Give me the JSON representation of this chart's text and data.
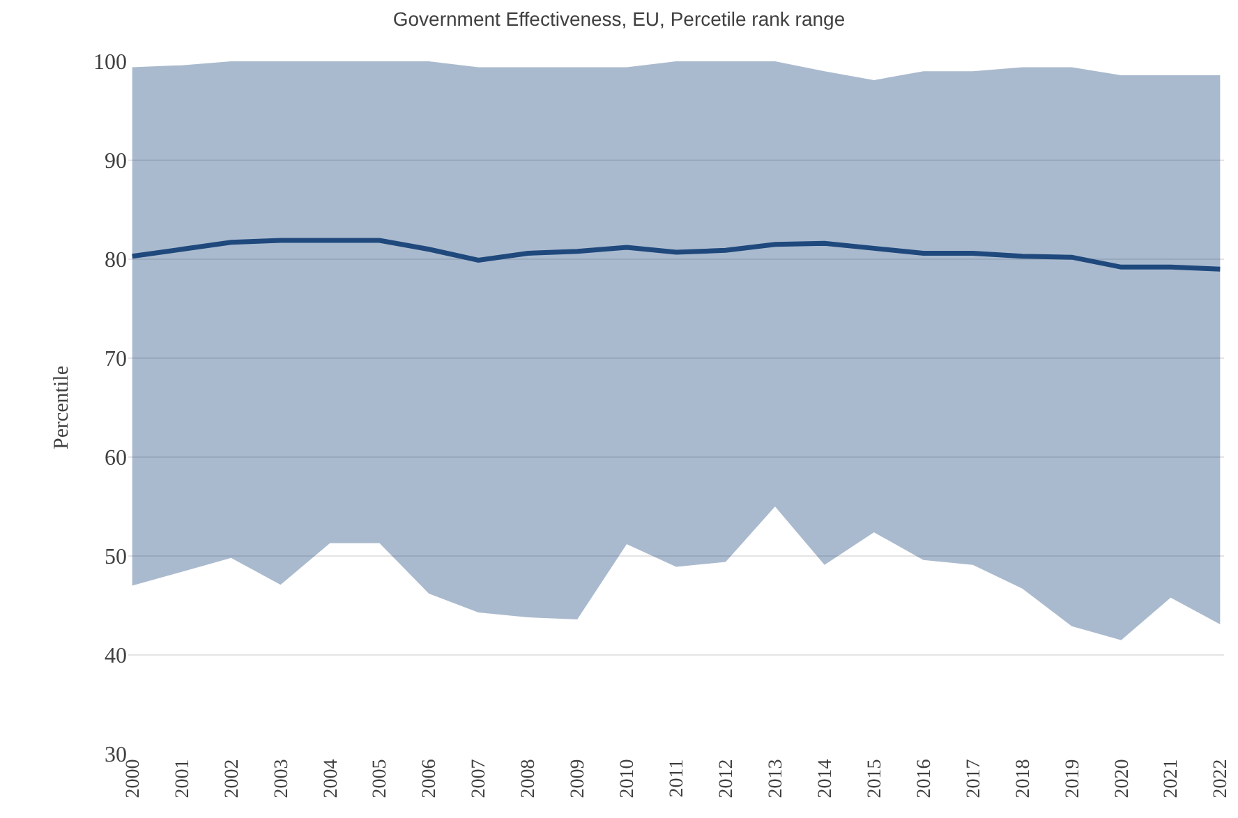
{
  "chart_data": {
    "type": "line",
    "title": "Government Effectiveness, EU, Percetile rank range",
    "ylabel": "Percentile",
    "categories": [
      "2000",
      "2001",
      "2002",
      "2003",
      "2004",
      "2005",
      "2006",
      "2007",
      "2008",
      "2009",
      "2010",
      "2011",
      "2012",
      "2013",
      "2014",
      "2015",
      "2016",
      "2017",
      "2018",
      "2019",
      "2020",
      "2021",
      "2022"
    ],
    "series": [
      {
        "color": "#1f497d",
        "values": [
          80.3,
          81.0,
          81.7,
          81.9,
          81.9,
          81.9,
          81.0,
          79.9,
          80.6,
          80.8,
          81.2,
          80.7,
          80.9,
          81.5,
          81.6,
          81.1,
          80.6,
          80.6,
          80.3,
          80.2,
          79.2,
          79.2,
          79.0
        ],
        "lower": [
          47.0,
          48.4,
          49.8,
          47.1,
          51.3,
          51.3,
          46.2,
          44.3,
          43.8,
          43.6,
          51.2,
          48.9,
          49.4,
          55.0,
          49.1,
          52.4,
          49.6,
          49.1,
          46.7,
          42.9,
          41.5,
          45.8,
          43.1
        ],
        "upper": [
          99.4,
          99.6,
          100,
          100,
          100,
          100,
          100,
          99.4,
          99.4,
          99.4,
          99.4,
          100,
          100,
          100,
          99.0,
          98.1,
          99.0,
          99.0,
          99.4,
          99.4,
          98.6,
          98.6,
          98.6
        ]
      }
    ],
    "ylim": [
      30,
      100
    ],
    "yticks": [
      30,
      40,
      50,
      60,
      70,
      80,
      90,
      100
    ],
    "grid": "y",
    "line_style": "solid",
    "marker": "none"
  }
}
